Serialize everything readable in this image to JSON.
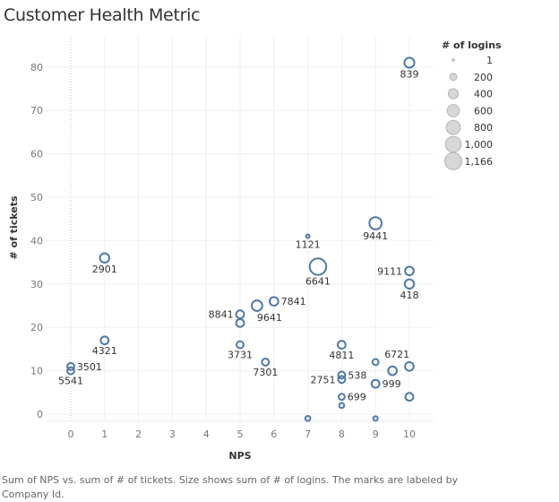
{
  "chart_data": {
    "type": "scatter",
    "title": "Customer Health Metric",
    "xlabel": "NPS",
    "ylabel": "# of tickets",
    "xlim": [
      -0.4,
      10.7
    ],
    "ylim": [
      -1,
      86
    ],
    "xticks": [
      "0",
      "1",
      "2",
      "3",
      "4",
      "5",
      "6",
      "7",
      "8",
      "9",
      "10"
    ],
    "yticks": [
      "0",
      "10",
      "20",
      "30",
      "40",
      "50",
      "60",
      "70",
      "80"
    ],
    "grid": true,
    "zero_line_x": true,
    "mark_color": "#4e79a7",
    "size_legend": {
      "title": "# of logins",
      "entries": [
        {
          "label": "1",
          "value": 1
        },
        {
          "label": "200",
          "value": 200
        },
        {
          "label": "400",
          "value": 400
        },
        {
          "label": "600",
          "value": 600
        },
        {
          "label": "800",
          "value": 800
        },
        {
          "label": "1,000",
          "value": 1000
        },
        {
          "label": "1,166",
          "value": 1166
        }
      ],
      "placement": "right"
    },
    "points": [
      {
        "id": "839",
        "x": 10,
        "y": 81,
        "size": 400,
        "label": "839",
        "label_pos": "below"
      },
      {
        "id": "9441",
        "x": 9,
        "y": 44,
        "size": 600,
        "label": "9441",
        "label_pos": "below"
      },
      {
        "id": "1121",
        "x": 7,
        "y": 41,
        "size": 30,
        "label": "1121",
        "label_pos": "below"
      },
      {
        "id": "6641",
        "x": 7.3,
        "y": 34,
        "size": 1100,
        "label": "6641",
        "label_pos": "below"
      },
      {
        "id": "9111",
        "x": 10,
        "y": 33,
        "size": 300,
        "label": "9111",
        "label_pos": "left"
      },
      {
        "id": "418",
        "x": 10,
        "y": 30,
        "size": 350,
        "label": "418",
        "label_pos": "below"
      },
      {
        "id": "2901",
        "x": 1,
        "y": 36,
        "size": 350,
        "label": "2901",
        "label_pos": "below"
      },
      {
        "id": "7841",
        "x": 6,
        "y": 26,
        "size": 300,
        "label": "7841",
        "label_pos": "right"
      },
      {
        "id": "9641",
        "x": 5.5,
        "y": 25,
        "size": 450,
        "label": "9641",
        "label_pos": "below-right"
      },
      {
        "id": "8841",
        "x": 5,
        "y": 23,
        "size": 250,
        "label": "8841",
        "label_pos": "left"
      },
      {
        "id": "8841b",
        "x": 5,
        "y": 21,
        "size": 250,
        "label": "",
        "label_pos": "none"
      },
      {
        "id": "4321",
        "x": 1,
        "y": 17,
        "size": 250,
        "label": "4321",
        "label_pos": "below"
      },
      {
        "id": "3731",
        "x": 5,
        "y": 16,
        "size": 200,
        "label": "3731",
        "label_pos": "below"
      },
      {
        "id": "4811",
        "x": 8,
        "y": 16,
        "size": 250,
        "label": "4811",
        "label_pos": "below"
      },
      {
        "id": "7301",
        "x": 5.75,
        "y": 12,
        "size": 200,
        "label": "7301",
        "label_pos": "below"
      },
      {
        "id": "3501",
        "x": 0,
        "y": 11,
        "size": 200,
        "label": "3501",
        "label_pos": "right"
      },
      {
        "id": "5541",
        "x": 0,
        "y": 10,
        "size": 200,
        "label": "5541",
        "label_pos": "below"
      },
      {
        "id": "6721",
        "x": 9,
        "y": 12,
        "size": 150,
        "label": "6721",
        "label_pos": "above-right"
      },
      {
        "id": "6721b",
        "x": 9.5,
        "y": 10,
        "size": 300,
        "label": "",
        "label_pos": "none"
      },
      {
        "id": "6721c",
        "x": 10,
        "y": 11,
        "size": 300,
        "label": "",
        "label_pos": "none"
      },
      {
        "id": "538",
        "x": 8,
        "y": 9,
        "size": 200,
        "label": "538",
        "label_pos": "right"
      },
      {
        "id": "2751",
        "x": 8,
        "y": 8,
        "size": 200,
        "label": "2751",
        "label_pos": "left"
      },
      {
        "id": "999",
        "x": 9,
        "y": 7,
        "size": 250,
        "label": "999",
        "label_pos": "right"
      },
      {
        "id": "699",
        "x": 8,
        "y": 4,
        "size": 150,
        "label": "699",
        "label_pos": "right"
      },
      {
        "id": "10b",
        "x": 10,
        "y": 4,
        "size": 250,
        "label": "",
        "label_pos": "none"
      },
      {
        "id": "8b",
        "x": 8,
        "y": 2,
        "size": 100,
        "label": "",
        "label_pos": "none"
      },
      {
        "id": "7b",
        "x": 7,
        "y": -1,
        "size": 100,
        "label": "",
        "label_pos": "none"
      },
      {
        "id": "9b",
        "x": 9,
        "y": -1,
        "size": 80,
        "label": "",
        "label_pos": "none"
      }
    ],
    "caption": "Sum of NPS vs. sum of # of tickets.  Size shows sum of # of logins.  The marks are labeled by Company Id."
  }
}
